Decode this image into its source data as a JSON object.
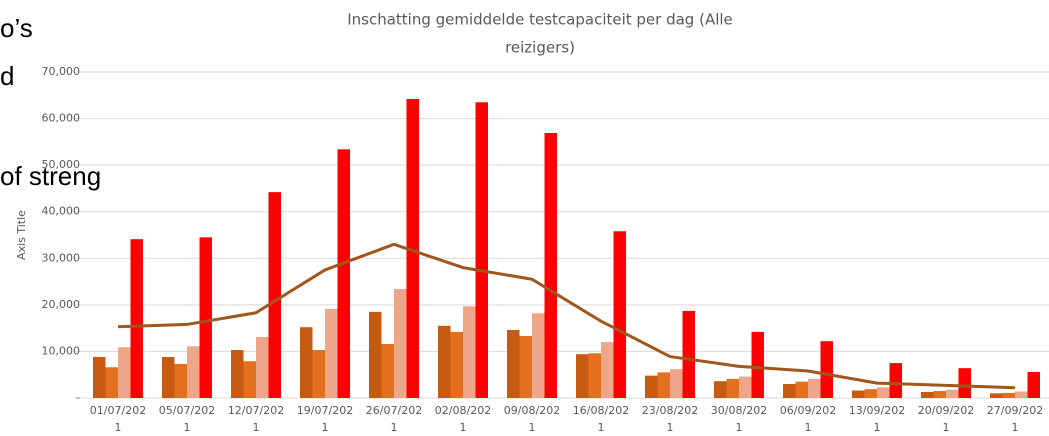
{
  "chart_data": {
    "type": "bar",
    "title_lines": [
      "Inschatting gemiddelde testcapaciteit per dag (Alle",
      "reizigers)"
    ],
    "y_axis_label": "Axis Title",
    "annotations": [
      "o’s",
      "d",
      "of streng"
    ],
    "categories": [
      "01/07/2021",
      "05/07/2021",
      "12/07/2021",
      "19/07/2021",
      "26/07/2021",
      "02/08/2021",
      "09/08/2021",
      "16/08/2021",
      "23/08/2021",
      "30/08/2021",
      "06/09/2021",
      "13/09/2021",
      "20/09/2021",
      "27/09/2021"
    ],
    "series": [
      {
        "type": "bar",
        "color": "#c55a11",
        "values": [
          8800,
          8800,
          10300,
          15200,
          18500,
          15500,
          14600,
          9400,
          4800,
          3600,
          3000,
          1600,
          1300,
          1000
        ]
      },
      {
        "type": "bar",
        "color": "#e2701e",
        "values": [
          6600,
          7300,
          7900,
          10300,
          11600,
          14200,
          13300,
          9600,
          5500,
          4100,
          3500,
          1900,
          1500,
          1100
        ]
      },
      {
        "type": "bar",
        "color": "#eea68a",
        "values": [
          10900,
          11100,
          13100,
          19100,
          23400,
          19700,
          18200,
          12000,
          6200,
          4600,
          4100,
          2300,
          1800,
          1400
        ]
      },
      {
        "type": "bar",
        "color": "#ff0000",
        "values": [
          34100,
          34500,
          44200,
          53400,
          64200,
          63500,
          56900,
          35800,
          18700,
          14200,
          12200,
          7500,
          6400,
          5600
        ]
      },
      {
        "type": "line",
        "color": "#a0561c",
        "values": [
          15300,
          15800,
          18300,
          27500,
          33000,
          28000,
          25500,
          16500,
          8900,
          6800,
          5800,
          3200,
          2700,
          2200
        ]
      }
    ],
    "ylim": [
      0,
      70000
    ],
    "yticks": [
      {
        "value": 0,
        "label": "-"
      },
      {
        "value": 10000,
        "label": "10,000"
      },
      {
        "value": 20000,
        "label": "20,000"
      },
      {
        "value": 30000,
        "label": "30,000"
      },
      {
        "value": 40000,
        "label": "40,000"
      },
      {
        "value": 50000,
        "label": "50,000"
      },
      {
        "value": 60000,
        "label": "60,000"
      },
      {
        "value": 70000,
        "label": "70,000"
      }
    ],
    "grid": true
  }
}
